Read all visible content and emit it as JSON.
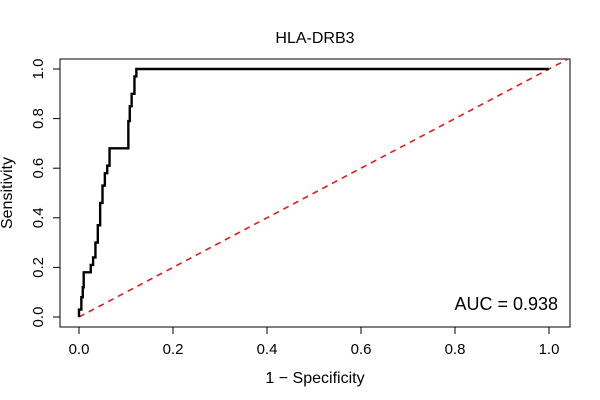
{
  "chart_data": {
    "type": "line",
    "title": "HLA-DRB3",
    "xlabel": "1 − Specificity",
    "ylabel": "Sensitivity",
    "xlim": [
      0,
      1
    ],
    "ylim": [
      0,
      1
    ],
    "x_ticks": [
      "0.0",
      "0.2",
      "0.4",
      "0.6",
      "0.8",
      "1.0"
    ],
    "y_ticks": [
      "0.0",
      "0.2",
      "0.4",
      "0.6",
      "0.8",
      "1.0"
    ],
    "x_tick_values": [
      0,
      0.2,
      0.4,
      0.6,
      0.8,
      1.0
    ],
    "y_tick_values": [
      0,
      0.2,
      0.4,
      0.6,
      0.8,
      1.0
    ],
    "grid": false,
    "annotation": "AUC = 0.938",
    "series": [
      {
        "color": "#000000",
        "style": "solid",
        "x": [
          0,
          0,
          0.005,
          0.005,
          0.008,
          0.008,
          0.01,
          0.01,
          0.025,
          0.025,
          0.03,
          0.03,
          0.035,
          0.035,
          0.04,
          0.04,
          0.045,
          0.045,
          0.05,
          0.05,
          0.055,
          0.055,
          0.06,
          0.06,
          0.065,
          0.065,
          0.07,
          0.07,
          0.105,
          0.105,
          0.108,
          0.108,
          0.112,
          0.112,
          0.118,
          0.118,
          0.122,
          0.122,
          1.0
        ],
        "y": [
          0,
          0.03,
          0.03,
          0.08,
          0.08,
          0.12,
          0.12,
          0.18,
          0.18,
          0.21,
          0.21,
          0.24,
          0.24,
          0.3,
          0.3,
          0.37,
          0.37,
          0.46,
          0.46,
          0.53,
          0.53,
          0.58,
          0.58,
          0.61,
          0.61,
          0.68,
          0.68,
          0.68,
          0.68,
          0.79,
          0.79,
          0.85,
          0.85,
          0.9,
          0.9,
          0.97,
          0.97,
          1.0,
          1.0
        ]
      },
      {
        "color": "#e31a1c",
        "style": "dashed",
        "x": [
          0,
          1.05
        ],
        "y": [
          0,
          1.05
        ]
      }
    ]
  }
}
